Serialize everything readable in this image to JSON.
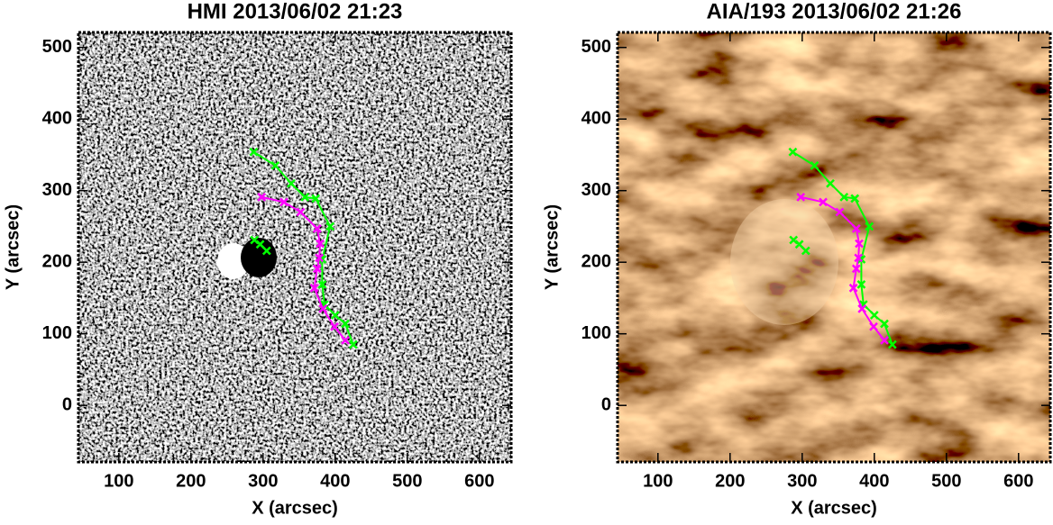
{
  "chart_data": [
    {
      "type": "line",
      "title": "HMI 2013/06/02 21:23",
      "x_label": "X (arcsec)",
      "y_label": "Y (arcsec)",
      "xlim": [
        44,
        644
      ],
      "ylim": [
        -79,
        521
      ],
      "xticks": [
        100,
        200,
        300,
        400,
        500,
        600
      ],
      "yticks": [
        0,
        100,
        200,
        300,
        400,
        500
      ],
      "background": "magnetogram",
      "series": [
        {
          "color": "#00ff00",
          "x": [
            287,
            317,
            339,
            358,
            373,
            393,
            382,
            382,
            385,
            400,
            414,
            425
          ],
          "values": [
            354,
            335,
            310,
            291,
            289,
            250,
            204,
            169,
            141,
            126,
            114,
            85
          ]
        },
        {
          "color": "#00ff00",
          "x": [
            288,
            296,
            305
          ],
          "values": [
            231,
            225,
            216
          ]
        },
        {
          "color": "#ff00ff",
          "x": [
            298,
            329,
            352,
            375,
            379,
            378,
            375,
            371,
            383,
            399,
            414
          ],
          "values": [
            291,
            284,
            270,
            247,
            226,
            206,
            191,
            164,
            135,
            110,
            91
          ]
        }
      ]
    },
    {
      "type": "line",
      "title": "AIA/193 2013/06/02 21:26",
      "x_label": "X (arcsec)",
      "y_label": "Y (arcsec)",
      "xlim": [
        44,
        644
      ],
      "ylim": [
        -79,
        521
      ],
      "xticks": [
        100,
        200,
        300,
        400,
        500,
        600
      ],
      "yticks": [
        0,
        100,
        200,
        300,
        400,
        500
      ],
      "background": "euv",
      "series": [
        {
          "color": "#00ff00",
          "x": [
            287,
            317,
            339,
            358,
            373,
            393,
            382,
            382,
            385,
            400,
            414,
            425
          ],
          "values": [
            354,
            335,
            310,
            291,
            289,
            250,
            204,
            169,
            141,
            126,
            114,
            85
          ]
        },
        {
          "color": "#00ff00",
          "x": [
            288,
            296,
            305
          ],
          "values": [
            231,
            225,
            216
          ]
        },
        {
          "color": "#ff00ff",
          "x": [
            298,
            329,
            352,
            375,
            379,
            378,
            375,
            371,
            383,
            399,
            414
          ],
          "values": [
            291,
            284,
            270,
            247,
            226,
            206,
            191,
            164,
            135,
            110,
            91
          ]
        }
      ]
    }
  ]
}
